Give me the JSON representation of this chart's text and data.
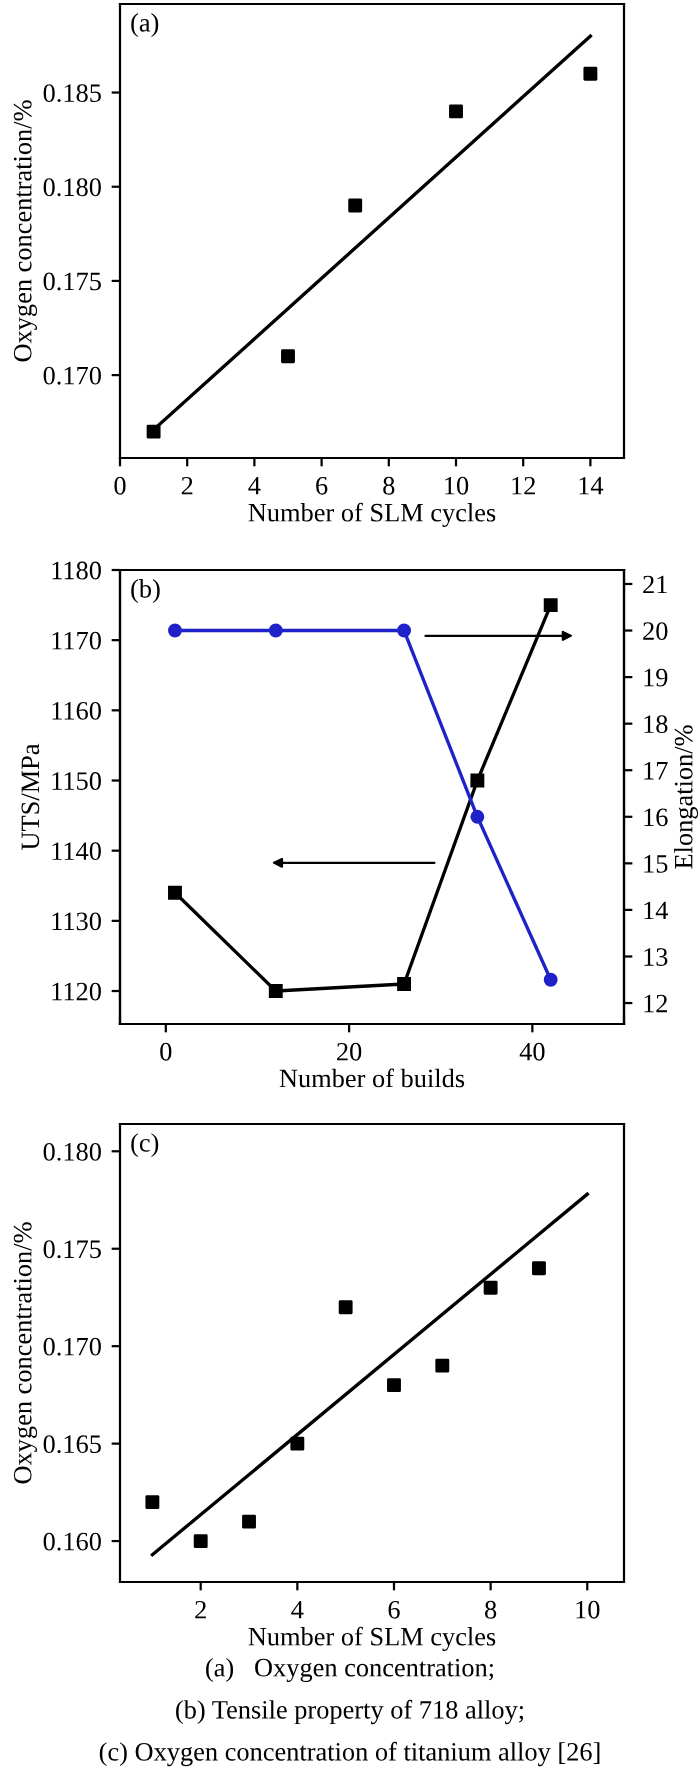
{
  "chart_data": [
    {
      "type": "scatter",
      "xlabel": "Number of SLM cycles",
      "ylabel": "Oxygen concentration/%",
      "xlim": [
        0,
        15
      ],
      "xticks": [
        0,
        2,
        4,
        6,
        8,
        10,
        12,
        14
      ],
      "ylim": [
        0.1656,
        0.1897
      ],
      "yticks": [
        {
          "value": 0.17,
          "label": "0.170"
        },
        {
          "value": 0.175,
          "label": "0.175"
        },
        {
          "value": 0.18,
          "label": "0.180"
        },
        {
          "value": 0.185,
          "label": "0.185"
        }
      ],
      "marker": "square",
      "grid": false,
      "annotations": [
        "(a)"
      ],
      "series": [
        {
          "color": "#000000",
          "x": [
            1,
            5,
            7,
            10,
            14
          ],
          "values": [
            0.167,
            0.171,
            0.179,
            0.184,
            0.186
          ]
        },
        {
          "type": "line",
          "marker": "none",
          "color": "#000000",
          "x": [
            1,
            14
          ],
          "values": [
            0.1671,
            0.188
          ]
        }
      ]
    },
    {
      "type": "line",
      "xlabel": "Number of builds",
      "ylabel": "UTS/MPa",
      "y2label": "Elongation/%",
      "xlim": [
        -5,
        50
      ],
      "xticks": [
        0,
        20,
        40
      ],
      "ylim": [
        1115.3,
        1180
      ],
      "yticks": [
        1120,
        1130,
        1140,
        1150,
        1160,
        1170,
        1180
      ],
      "y2lim": [
        11.55,
        21.3
      ],
      "y2ticks": [
        12,
        13,
        14,
        15,
        16,
        17,
        18,
        19,
        20,
        21
      ],
      "grid": false,
      "line_style": "solid",
      "annotations": [
        "(b)"
      ],
      "series": [
        {
          "marker": "square",
          "color": "#000000",
          "x": [
            1,
            12,
            26,
            34,
            42
          ],
          "values": [
            1134,
            1120,
            1121,
            1150,
            1175
          ]
        },
        {
          "marker": "circle",
          "axis": "y2",
          "color": "#1f22c8",
          "x": [
            1,
            12,
            26,
            34,
            42
          ],
          "values": [
            20,
            20,
            20,
            16,
            12.5
          ]
        }
      ]
    },
    {
      "type": "scatter",
      "xlabel": "Number of SLM cycles",
      "ylabel": "Oxygen concentration/%",
      "xlim": [
        0.33,
        10.76
      ],
      "xticks": [
        2,
        4,
        6,
        8,
        10
      ],
      "ylim": [
        0.1579,
        0.1814
      ],
      "yticks": [
        {
          "value": 0.16,
          "label": "0.160"
        },
        {
          "value": 0.165,
          "label": "0.165"
        },
        {
          "value": 0.17,
          "label": "0.170"
        },
        {
          "value": 0.175,
          "label": "0.175"
        },
        {
          "value": 0.18,
          "label": "0.180"
        }
      ],
      "marker": "square",
      "grid": false,
      "annotations": [
        "(c)",
        "(a)   Oxygen concentration;",
        "(b) Tensile property of 718 alloy;",
        "(c) Oxygen concentration of titanium alloy [26]"
      ],
      "series": [
        {
          "color": "#000000",
          "x": [
            1,
            2,
            3,
            4,
            5,
            6,
            7,
            8,
            9
          ],
          "values": [
            0.162,
            0.16,
            0.161,
            0.165,
            0.172,
            0.168,
            0.169,
            0.173,
            0.174
          ]
        },
        {
          "type": "line",
          "marker": "none",
          "color": "#000000",
          "x": [
            1,
            10
          ],
          "values": [
            0.1593,
            0.1778
          ]
        }
      ]
    }
  ]
}
